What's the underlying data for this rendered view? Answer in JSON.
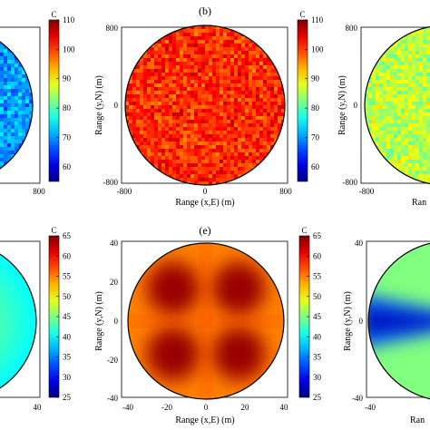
{
  "chart_data": [
    {
      "type": "heatmap",
      "panel": "a",
      "panel_label": "",
      "shape": "circle",
      "pattern": "noise",
      "x_ticks": [
        "800"
      ],
      "y_ticks": [],
      "xlabel": "",
      "ylabel": "",
      "xlim": [
        -800,
        800
      ],
      "ylim": [
        -800,
        800
      ],
      "colorbar": {
        "unit": "C",
        "ticks": [
          "110",
          "100",
          "90",
          "80",
          "70",
          "60"
        ],
        "range": [
          55,
          110
        ]
      },
      "mean_value": 70,
      "noise_spread": 4
    },
    {
      "type": "heatmap",
      "panel": "b",
      "panel_label": "(b)",
      "shape": "circle",
      "pattern": "noise",
      "x_ticks": [
        "-800",
        "0",
        "800"
      ],
      "y_ticks": [
        "800",
        "0",
        "-800"
      ],
      "xlabel": "Range (x,E) (m)",
      "ylabel": "Range (y,N) (m)",
      "xlim": [
        -800,
        800
      ],
      "ylim": [
        -800,
        800
      ],
      "colorbar": {
        "unit": "C",
        "ticks": [
          "110",
          "100",
          "90",
          "80",
          "70",
          "60"
        ],
        "range": [
          55,
          110
        ]
      },
      "mean_value": 101,
      "noise_spread": 4
    },
    {
      "type": "heatmap",
      "panel": "c",
      "panel_label": "",
      "shape": "circle",
      "pattern": "noise",
      "x_ticks": [
        "-800"
      ],
      "y_ticks": [
        "800",
        "0",
        "-800"
      ],
      "xlabel": "Ran",
      "ylabel": "Range (y,N) (m)",
      "xlim": [
        -800,
        800
      ],
      "ylim": [
        -800,
        800
      ],
      "colorbar": null,
      "mean_value": 86,
      "noise_spread": 4
    },
    {
      "type": "heatmap",
      "panel": "d",
      "panel_label": "",
      "shape": "circle",
      "pattern": "smooth",
      "x_ticks": [
        "40"
      ],
      "y_ticks": [],
      "xlabel": "",
      "ylabel": "",
      "xlim": [
        -40,
        40
      ],
      "ylim": [
        -40,
        40
      ],
      "colorbar": {
        "unit": "C",
        "ticks": [
          "65",
          "60",
          "55",
          "50",
          "45",
          "40",
          "35",
          "30",
          "25"
        ],
        "range": [
          25,
          65
        ]
      },
      "mean_value": 46
    },
    {
      "type": "heatmap",
      "panel": "e",
      "panel_label": "(e)",
      "shape": "circle",
      "pattern": "clover",
      "x_ticks": [
        "-40",
        "-20",
        "0",
        "20",
        "40"
      ],
      "y_ticks": [
        "40",
        "20",
        "0",
        "-20",
        "-40"
      ],
      "xlabel": "Range (x,E) (m)",
      "ylabel": "Range (y,N) (m)",
      "xlim": [
        -40,
        40
      ],
      "ylim": [
        -40,
        40
      ],
      "colorbar": {
        "unit": "C",
        "ticks": [
          "65",
          "60",
          "55",
          "50",
          "45",
          "40",
          "35",
          "30",
          "25"
        ],
        "range": [
          25,
          65
        ]
      },
      "min_value": 55,
      "max_value": 64
    },
    {
      "type": "heatmap",
      "panel": "f",
      "panel_label": "",
      "shape": "circle",
      "pattern": "wedge",
      "x_ticks": [
        "-40"
      ],
      "y_ticks": [
        "40",
        "0",
        "-40"
      ],
      "xlabel": "Ran",
      "ylabel": "Range (y,N) (m)",
      "xlim": [
        -40,
        40
      ],
      "ylim": [
        -40,
        40
      ],
      "colorbar": null,
      "min_value": 27,
      "max_value": 45
    }
  ]
}
